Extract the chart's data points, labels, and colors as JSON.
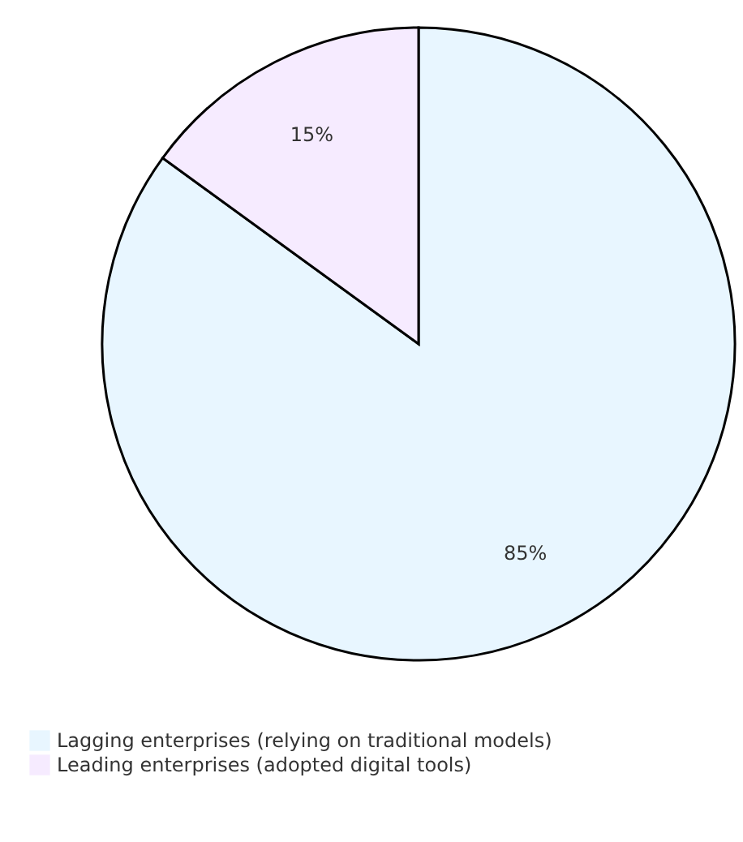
{
  "chart_data": {
    "type": "pie",
    "categories": [
      "Lagging enterprises (relying on traditional models)",
      "Leading enterprises (adopted digital tools)"
    ],
    "values": [
      85,
      15
    ],
    "colors": [
      "#e8f6ff",
      "#f6ebff"
    ],
    "value_labels": [
      "85%",
      "15%"
    ],
    "legend": "bottom left"
  }
}
